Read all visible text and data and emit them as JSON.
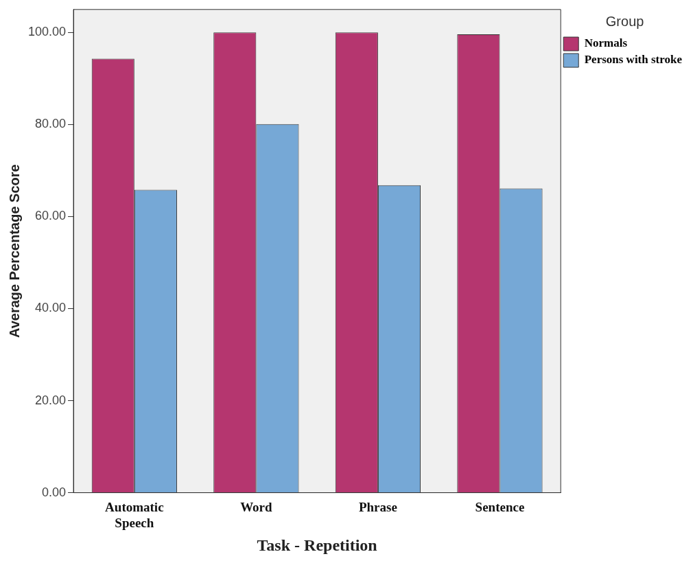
{
  "chart_data": {
    "type": "bar",
    "xlabel": "Task - Repetition",
    "ylabel": "Average Percentage Score",
    "legend_title": "Group",
    "categories": [
      "Automatic Speech",
      "Word",
      "Phrase",
      "Sentence"
    ],
    "series": [
      {
        "name": "Normals",
        "color": "#b5366f",
        "values": [
          94.3,
          100,
          100,
          99.6
        ]
      },
      {
        "name": "Persons with stroke",
        "color": "#76a8d6",
        "values": [
          65.8,
          80.1,
          66.8,
          66.1
        ]
      }
    ],
    "ylim": [
      0,
      105
    ],
    "yticks": [
      {
        "value": 0,
        "label": "0.00"
      },
      {
        "value": 20,
        "label": "20.00"
      },
      {
        "value": 40,
        "label": "40.00"
      },
      {
        "value": 60,
        "label": "60.00"
      },
      {
        "value": 80,
        "label": "80.00"
      },
      {
        "value": 100,
        "label": "100.00"
      }
    ],
    "grid": false,
    "legend": "top right"
  }
}
